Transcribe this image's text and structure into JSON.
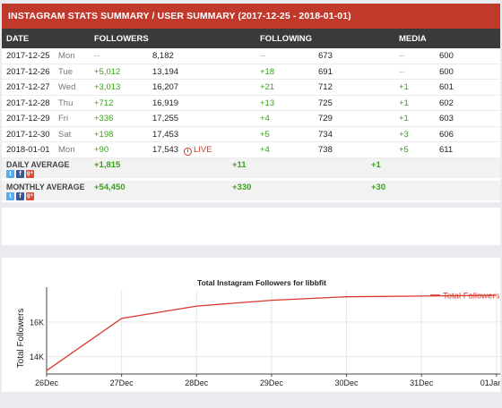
{
  "summary": {
    "title": "INSTAGRAM STATS SUMMARY / USER SUMMARY (2017-12-25 - 2018-01-01)",
    "headers": {
      "date": "DATE",
      "followers": "FOLLOWERS",
      "following": "FOLLOWING",
      "media": "MEDIA"
    },
    "rows": [
      {
        "date": "2017-12-25",
        "dow": "Mon",
        "followers_delta": "--",
        "followers": "8,182",
        "following_delta": "--",
        "following": "673",
        "media_delta": "--",
        "media": "600"
      },
      {
        "date": "2017-12-26",
        "dow": "Tue",
        "followers_delta": "+5,012",
        "followers": "13,194",
        "following_delta": "+18",
        "following": "691",
        "media_delta": "--",
        "media": "600"
      },
      {
        "date": "2017-12-27",
        "dow": "Wed",
        "followers_delta": "+3,013",
        "followers": "16,207",
        "following_delta": "+21",
        "following": "712",
        "media_delta": "+1",
        "media": "601"
      },
      {
        "date": "2017-12-28",
        "dow": "Thu",
        "followers_delta": "+712",
        "followers": "16,919",
        "following_delta": "+13",
        "following": "725",
        "media_delta": "+1",
        "media": "602"
      },
      {
        "date": "2017-12-29",
        "dow": "Fri",
        "followers_delta": "+336",
        "followers": "17,255",
        "following_delta": "+4",
        "following": "729",
        "media_delta": "+1",
        "media": "603"
      },
      {
        "date": "2017-12-30",
        "dow": "Sat",
        "followers_delta": "+198",
        "followers": "17,453",
        "following_delta": "+5",
        "following": "734",
        "media_delta": "+3",
        "media": "606"
      },
      {
        "date": "2018-01-01",
        "dow": "Mon",
        "followers_delta": "+90",
        "followers": "17,543",
        "following_delta": "+4",
        "following": "738",
        "media_delta": "+5",
        "media": "611"
      }
    ],
    "live_label": "LIVE",
    "daily_average": {
      "label": "DAILY AVERAGE",
      "followers": "+1,815",
      "following": "+11",
      "media": "+1"
    },
    "monthly_average": {
      "label": "MONTHLY AVERAGE",
      "followers": "+54,450",
      "following": "+330",
      "media": "+30"
    },
    "share_icons": {
      "twitter": "t",
      "facebook": "f",
      "google": "g+"
    }
  },
  "colors": {
    "accent": "#c0392b",
    "header": "#3a3a3a",
    "positive": "#3aa01d",
    "live": "#d9382b",
    "line": "#d9382b"
  },
  "chart_data": {
    "type": "line",
    "title": "Total Instagram Followers for libbfit",
    "ylabel": "Total Followers",
    "xlabel": "",
    "x": [
      "26Dec",
      "27Dec",
      "28Dec",
      "29Dec",
      "30Dec",
      "31Dec",
      "01Jan"
    ],
    "series": [
      {
        "name": "Total Followers",
        "x": [
          "26Dec",
          "27Dec",
          "28Dec",
          "29Dec",
          "30Dec",
          "31Dec",
          "01Jan"
        ],
        "values": [
          13194,
          16207,
          16919,
          17255,
          17453,
          17498,
          17543
        ]
      }
    ],
    "ylim": [
      13000,
      17800
    ],
    "yticks": [
      {
        "v": 14000,
        "label": "14K"
      },
      {
        "v": 16000,
        "label": "16K"
      }
    ],
    "legend": "top-right",
    "grid": true
  }
}
